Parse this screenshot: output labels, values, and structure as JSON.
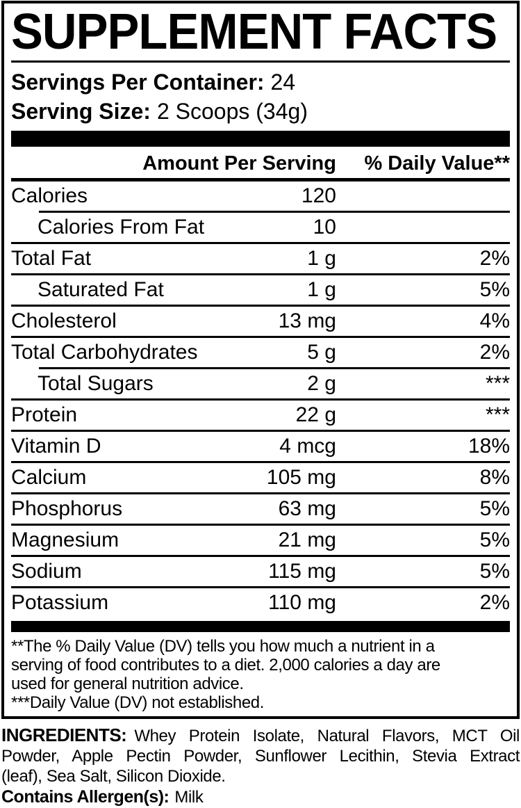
{
  "title": "SUPPLEMENT FACTS",
  "serving": {
    "servings_label": "Servings Per Container:",
    "servings_value": "24",
    "size_label": "Serving Size:",
    "size_value": "2 Scoops (34g)"
  },
  "table": {
    "header": {
      "amount": "Amount Per Serving",
      "dv": "% Daily Value**"
    },
    "rows": [
      {
        "label": "Calories",
        "amount": "120",
        "dv": "",
        "indent": false,
        "sep": "none"
      },
      {
        "label": "Calories From Fat",
        "amount": "10",
        "dv": "",
        "indent": true,
        "sep": "indent"
      },
      {
        "label": "Total Fat",
        "amount": "1 g",
        "dv": "2%",
        "indent": false,
        "sep": "full"
      },
      {
        "label": "Saturated Fat",
        "amount": "1 g",
        "dv": "5%",
        "indent": true,
        "sep": "full"
      },
      {
        "label": "Cholesterol",
        "amount": "13 mg",
        "dv": "4%",
        "indent": false,
        "sep": "full"
      },
      {
        "label": "Total Carbohydrates",
        "amount": "5 g",
        "dv": "2%",
        "indent": false,
        "sep": "full"
      },
      {
        "label": "Total Sugars",
        "amount": "2 g",
        "dv": "***",
        "indent": true,
        "sep": "indent"
      },
      {
        "label": "Protein",
        "amount": "22 g",
        "dv": "***",
        "indent": false,
        "sep": "full"
      },
      {
        "label": "Vitamin D",
        "amount": "4 mcg",
        "dv": "18%",
        "indent": false,
        "sep": "full"
      },
      {
        "label": "Calcium",
        "amount": "105 mg",
        "dv": "8%",
        "indent": false,
        "sep": "full"
      },
      {
        "label": "Phosphorus",
        "amount": "63 mg",
        "dv": "5%",
        "indent": false,
        "sep": "full"
      },
      {
        "label": "Magnesium",
        "amount": "21 mg",
        "dv": "5%",
        "indent": false,
        "sep": "full"
      },
      {
        "label": "Sodium",
        "amount": "115 mg",
        "dv": "5%",
        "indent": false,
        "sep": "full"
      },
      {
        "label": "Potassium",
        "amount": "110 mg",
        "dv": "2%",
        "indent": false,
        "sep": "full"
      }
    ]
  },
  "footnotes": {
    "lines": [
      "**The % Daily Value (DV) tells you how much a nutrient in a",
      "serving of food contributes to a diet. 2,000 calories a day are",
      "used for general nutrition advice.",
      "***Daily Value (DV) not established."
    ]
  },
  "ingredients": {
    "label": "INGREDIENTS:",
    "line1_rest": "Whey Protein Isolate, Natural Flavors, MCT Oil",
    "line2": "Powder, Apple Pectin Powder, Sunflower Lecithin, Stevia Extract",
    "line3": "(leaf), Sea Salt, Silicon Dioxide."
  },
  "allergen": {
    "label": "Contains Allergen(s):",
    "value": "Milk"
  },
  "colors": {
    "ink": "#000000",
    "paper": "#ffffff"
  }
}
